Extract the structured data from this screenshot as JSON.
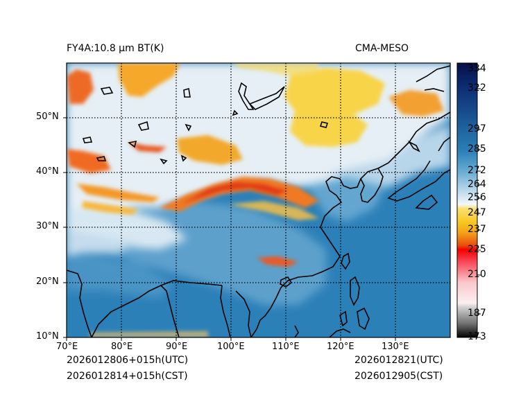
{
  "title_left": "FY4A:10.8 µm BT(K)",
  "title_right": "CMA-MESO",
  "footer": {
    "init_utc": "2026012806+015h(UTC)",
    "init_cst": "2026012814+015h(CST)",
    "valid_utc": "2026012821(UTC)",
    "valid_cst": "2026012905(CST)"
  },
  "lon_ticks": [
    "70°E",
    "80°E",
    "90°E",
    "100°E",
    "110°E",
    "120°E",
    "130°E"
  ],
  "lat_ticks": [
    "50°N",
    "40°N",
    "30°N",
    "20°N",
    "10°N"
  ],
  "colorbar": {
    "ticks": [
      "334",
      "322",
      "297",
      "285",
      "272",
      "264",
      "256",
      "247",
      "237",
      "225",
      "210",
      "187",
      "173"
    ],
    "colors": {
      "deep_blue": "#0a1a5e",
      "mid_blue": "#2878b0",
      "light_blue": "#a8d0e6",
      "white": "#f6f8fa",
      "yellow": "#f6d030",
      "orange": "#f08018",
      "red": "#f00000",
      "pink": "#f8c0c8",
      "gray": "#8a8a8a",
      "black": "#000000"
    }
  },
  "map_colors": {
    "ocean": "#2c80b8",
    "cloud_white": "#eef4f8",
    "cold_top_yellow": "#f8d850",
    "cold_top_orange": "#f09030",
    "cold_top_red": "#e03018"
  }
}
